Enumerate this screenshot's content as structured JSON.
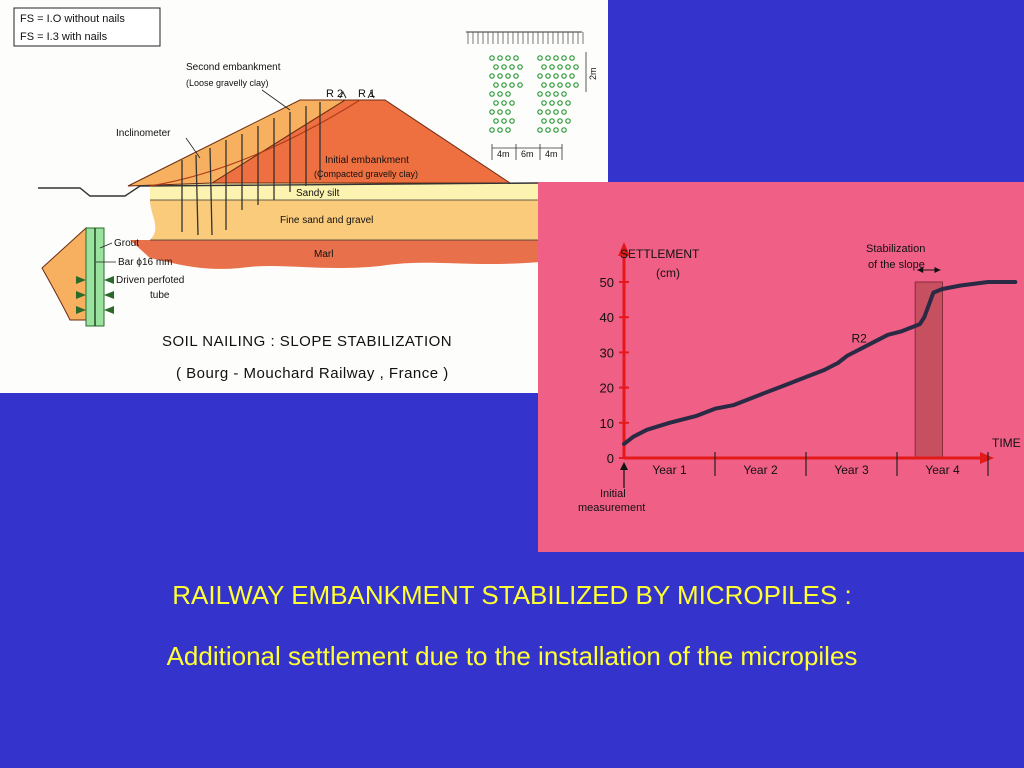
{
  "slide": {
    "background_color": "#3434cc",
    "caption_color": "#ffff33",
    "caption_line1": "RAILWAY EMBANKMENT STABILIZED BY MICROPILES :",
    "caption_line2": "Additional settlement due to the installation of the micropiles"
  },
  "diagram": {
    "fs_line1": "FS = I.O  without  nails",
    "fs_line2": "FS = I.3  with  nails",
    "second_embankment": "Second embankment",
    "second_embankment_sub": "(Loose gravelly clay)",
    "r2": "R 2",
    "r1": "R 1",
    "inclinometer": "Inclinometer",
    "initial_embankment": "Initial embankment",
    "initial_embankment_sub": "(Compacted gravelly clay)",
    "sandy_silt": "Sandy   silt",
    "fine_sand": "Fine sand and gravel",
    "marl": "Marl",
    "grout": "Grout",
    "bar": "Bar  ϕ16 mm",
    "driven_tube_1": "Driven  perfoted",
    "driven_tube_2": "tube",
    "dim_4m_a": "4m",
    "dim_6m": "6m",
    "dim_4m_b": "4m",
    "dim_2m": "2m",
    "title_line1": "SOIL NAILING :  SLOPE  STABILIZATION",
    "title_line2": "( Bourg - Mouchard  Railway ,  France )",
    "colors": {
      "initial_embankment": "#ee7040",
      "second_embankment": "#f7b060",
      "sandy_silt": "#fdf3b0",
      "fine_sand": "#f9cb7b",
      "marl": "#e8704a",
      "tube": "#9be2a0"
    }
  },
  "chart_data": {
    "type": "line",
    "ylabel_line1": "SETTLEMENT",
    "ylabel_line2": "(cm)",
    "xlabel": "TIME",
    "ylim": [
      0,
      50
    ],
    "yticks": [
      0,
      10,
      20,
      30,
      40,
      50
    ],
    "categories": [
      "Year 1",
      "Year 2",
      "Year 3",
      "Year 4"
    ],
    "series": [
      {
        "name": "R2",
        "x": [
          0.0,
          0.1,
          0.25,
          0.5,
          0.8,
          1.0,
          1.2,
          1.5,
          1.8,
          2.0,
          2.2,
          2.35,
          2.45,
          2.6,
          2.75,
          2.9,
          3.05,
          3.15,
          3.25,
          3.3,
          3.4,
          3.5,
          3.7,
          4.0,
          4.3
        ],
        "y": [
          4,
          6,
          8,
          10,
          12,
          14,
          15,
          18,
          21,
          23,
          25,
          27,
          29,
          31,
          33,
          35,
          36,
          37,
          38,
          40,
          47,
          48,
          49,
          50,
          50
        ]
      }
    ],
    "stabilization_label_line1": "Stabilization",
    "stabilization_label_line2": "of the slope",
    "stabilization_x_range": [
      3.2,
      3.5
    ],
    "initial_label_line1": "Initial",
    "initial_label_line2": "measurement",
    "colors": {
      "background": "#ef5f86",
      "axis": "#e41a1a",
      "curve": "#2a2a44",
      "band": "#c75060"
    }
  }
}
